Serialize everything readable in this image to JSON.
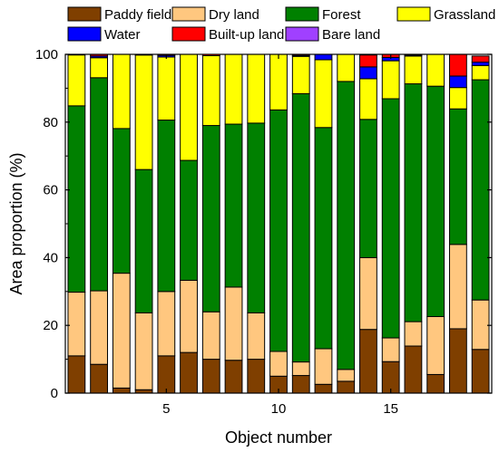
{
  "chart_data": {
    "type": "bar",
    "stacked": true,
    "xlabel": "Object number",
    "ylabel": "Area proportion (%)",
    "ylim": [
      0,
      100
    ],
    "xlim": [
      0.5,
      19.5
    ],
    "y_ticks": [
      0,
      20,
      40,
      60,
      80,
      100
    ],
    "x_ticks": [
      5,
      10,
      15
    ],
    "legend_position": "top",
    "categories": [
      1,
      2,
      3,
      4,
      5,
      6,
      7,
      8,
      9,
      10,
      11,
      12,
      13,
      14,
      15,
      16,
      17,
      18,
      19
    ],
    "series": [
      {
        "name": "Paddy field",
        "color": "#7f3f00",
        "values": [
          11,
          8.5,
          1.5,
          1,
          11,
          12,
          10,
          9.7,
          10,
          5,
          5.2,
          2.6,
          3.5,
          18.8,
          9.3,
          13.9,
          5.5,
          19,
          12.9
        ]
      },
      {
        "name": "Dry land",
        "color": "#ffc77f",
        "values": [
          18.8,
          21.7,
          33.9,
          22.7,
          19,
          21.3,
          14,
          21.6,
          13.7,
          7.3,
          4,
          10.5,
          3.5,
          21.2,
          7,
          7.2,
          17.1,
          24.9,
          14.6
        ]
      },
      {
        "name": "Forest",
        "color": "#008000",
        "values": [
          55,
          62.9,
          42.7,
          42.3,
          50.6,
          35.4,
          55,
          48.1,
          56,
          71.3,
          79.2,
          65.3,
          85,
          40.8,
          70.6,
          70.2,
          68,
          40,
          65
        ]
      },
      {
        "name": "Grassland",
        "color": "#ffff00",
        "values": [
          15,
          5.9,
          21.9,
          33.8,
          18.6,
          31.3,
          20.6,
          20.6,
          20.3,
          16.4,
          11,
          20,
          8,
          12,
          11.2,
          8.2,
          9.4,
          6.3,
          4.2
        ]
      },
      {
        "name": "Water",
        "color": "#0000ff",
        "values": [
          0,
          0.5,
          0,
          0,
          0.5,
          0,
          0,
          0,
          0,
          0,
          0.3,
          1.6,
          0,
          3.5,
          1,
          0.3,
          0,
          3.4,
          1
        ]
      },
      {
        "name": "Built-up land",
        "color": "#ff0000",
        "values": [
          0,
          0.5,
          0,
          0.2,
          0.3,
          0,
          0.4,
          0,
          0,
          0,
          0.3,
          0,
          0,
          3.5,
          0.9,
          0.2,
          0,
          6.4,
          1.8
        ]
      },
      {
        "name": "Bare land",
        "color": "#a040ff",
        "values": [
          0,
          0,
          0,
          0,
          0,
          0,
          0,
          0,
          0,
          0,
          0,
          0,
          0,
          0,
          0,
          0,
          0,
          0,
          0
        ]
      }
    ]
  }
}
